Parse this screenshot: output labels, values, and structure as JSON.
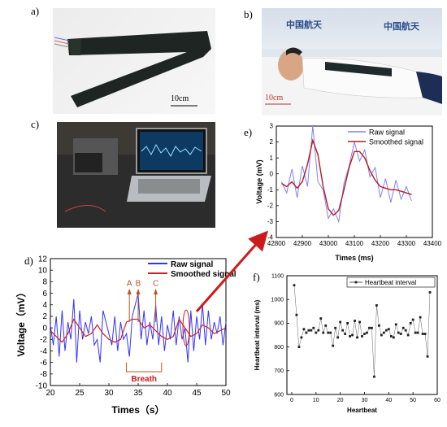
{
  "panels": {
    "a": {
      "label": "a)",
      "scale_text": "10cm"
    },
    "b": {
      "label": "b)",
      "scale_text": "10cm",
      "banner_text": "中国航天"
    },
    "c": {
      "label": "c)"
    },
    "d": {
      "label": "d)"
    },
    "e": {
      "label": "e)"
    },
    "f": {
      "label": "f)"
    }
  },
  "colors": {
    "raw": "#3333ff",
    "smoothed": "#cc2222",
    "annotation": "#b8541e",
    "arrow": "#cc1b1b"
  },
  "chart_data": [
    {
      "id": "d",
      "type": "line",
      "xlabel": "Times（s）",
      "ylabel": "Voltage（mV）",
      "xlim": [
        20,
        50
      ],
      "ylim": [
        -10,
        12
      ],
      "xticks": [
        20,
        25,
        30,
        35,
        40,
        45,
        50
      ],
      "yticks": [
        -10,
        -8,
        -6,
        -4,
        -2,
        0,
        2,
        4,
        6,
        8,
        10,
        12
      ],
      "legend": {
        "placement": "top-right",
        "entries": [
          "Raw signal",
          "Smoothed signal"
        ]
      },
      "series": [
        {
          "name": "Raw signal",
          "color": "#3333ff",
          "x": [
            20,
            20.5,
            21,
            21.5,
            22,
            22.5,
            23,
            23.5,
            24,
            24.5,
            25,
            25.5,
            26,
            26.5,
            27,
            27.5,
            28,
            28.5,
            29,
            29.5,
            30,
            30.5,
            31,
            31.5,
            32,
            32.5,
            33,
            33.5,
            34,
            34.5,
            35,
            35.5,
            36,
            36.5,
            37,
            37.5,
            38,
            38.5,
            39,
            39.5,
            40,
            40.5,
            41,
            41.5,
            42,
            42.5,
            43,
            43.5,
            44,
            44.5,
            45,
            45.5,
            46,
            46.5,
            47,
            47.5,
            48,
            48.5,
            49,
            49.5,
            50
          ],
          "values": [
            0.5,
            -3,
            2,
            -5,
            3,
            -4,
            1,
            -2,
            5,
            -6,
            3,
            -2,
            1,
            -1,
            2,
            -3,
            -2,
            -6,
            3,
            1,
            -1,
            -3,
            2,
            -4,
            1,
            -2,
            -1,
            -5,
            2,
            4,
            6,
            -2,
            3,
            -3,
            1,
            -2,
            4,
            -3,
            2,
            -4,
            0.5,
            -2,
            3,
            -3,
            2,
            -2,
            0,
            -6,
            3,
            -4,
            2,
            -2,
            4,
            -3,
            3,
            -2,
            1,
            -1,
            2,
            -3,
            1
          ]
        },
        {
          "name": "Smoothed signal",
          "color": "#cc2222",
          "x": [
            20,
            21,
            22,
            23,
            24,
            25,
            26,
            27,
            28,
            29,
            30,
            31,
            32,
            33,
            34,
            35,
            36,
            37,
            38,
            39,
            40,
            41,
            42,
            43,
            44,
            45,
            46,
            47,
            48,
            49,
            50
          ],
          "values": [
            -0.5,
            -1.5,
            -2.5,
            -1,
            1.5,
            0,
            -1.5,
            -1,
            0.5,
            -1,
            -2,
            -2.5,
            -2,
            1,
            1.5,
            1.5,
            0,
            0.5,
            -0.5,
            -1.5,
            -2,
            -1.5,
            1.5,
            0,
            -1.5,
            -1,
            0.5,
            0,
            -1,
            -0.5,
            0
          ]
        }
      ],
      "annotations": {
        "markers": [
          "A",
          "B",
          "C"
        ],
        "marker_x": [
          33.5,
          35,
          38
        ],
        "breath_label": "Breath",
        "breath_range": [
          33,
          39
        ]
      }
    },
    {
      "id": "e",
      "type": "line",
      "xlabel": "Times (ms)",
      "ylabel": "Voltage (mV)",
      "xlim": [
        42800,
        43400
      ],
      "ylim": [
        -4,
        3
      ],
      "xticks": [
        42800,
        42900,
        43000,
        43100,
        43200,
        43300,
        43400
      ],
      "yticks": [
        -4,
        -3,
        -2,
        -1,
        0,
        1,
        2,
        3
      ],
      "legend": {
        "placement": "top-right",
        "entries": [
          "Raw signal",
          "Smoothed signal"
        ]
      },
      "series": [
        {
          "name": "Raw signal",
          "color": "#8080ff",
          "x": [
            42820,
            42840,
            42860,
            42880,
            42900,
            42920,
            42940,
            42960,
            42980,
            43000,
            43020,
            43040,
            43060,
            43080,
            43100,
            43120,
            43140,
            43160,
            43180,
            43200,
            43220,
            43240,
            43260,
            43280,
            43300,
            43320
          ],
          "values": [
            -0.5,
            -1.2,
            0.3,
            -1.5,
            0.5,
            -0.8,
            3.0,
            -0.5,
            -1.0,
            -2.8,
            -2.2,
            -3.0,
            -0.6,
            0.5,
            2.0,
            0.8,
            1.5,
            -0.2,
            0.4,
            -1.5,
            -0.3,
            -1.8,
            -0.4,
            -1.6,
            -0.8,
            -1.7
          ]
        },
        {
          "name": "Smoothed signal",
          "color": "#b71c1c",
          "x": [
            42820,
            42840,
            42860,
            42880,
            42900,
            42920,
            42940,
            42960,
            42980,
            43000,
            43020,
            43040,
            43060,
            43080,
            43100,
            43120,
            43140,
            43160,
            43180,
            43200,
            43220,
            43240,
            43260,
            43280,
            43300,
            43320
          ],
          "values": [
            -0.6,
            -0.8,
            -0.5,
            -0.9,
            -0.5,
            0.6,
            2.1,
            1.2,
            -0.8,
            -2.2,
            -2.6,
            -2.3,
            -1.0,
            0.4,
            1.4,
            1.4,
            1.0,
            0.2,
            -0.4,
            -0.8,
            -0.9,
            -1.0,
            -1.0,
            -1.1,
            -1.2,
            -1.3
          ]
        }
      ]
    },
    {
      "id": "f",
      "type": "scatter",
      "xlabel": "Heartbeat",
      "ylabel": "Heartbeat interval (ms)",
      "xlim": [
        -2,
        60
      ],
      "ylim": [
        600,
        1100
      ],
      "xticks": [
        0,
        10,
        20,
        30,
        40,
        50,
        60
      ],
      "yticks": [
        600,
        700,
        800,
        900,
        1000,
        1100
      ],
      "legend": {
        "placement": "top-right",
        "entries": [
          "Heartbeat interval"
        ]
      },
      "series": [
        {
          "name": "Heartbeat interval",
          "color": "#222222",
          "x": [
            1,
            2,
            3,
            4,
            5,
            6,
            7,
            8,
            9,
            10,
            11,
            12,
            13,
            14,
            15,
            16,
            17,
            18,
            19,
            20,
            21,
            22,
            23,
            24,
            25,
            26,
            27,
            28,
            29,
            30,
            31,
            32,
            33,
            34,
            35,
            36,
            37,
            38,
            39,
            40,
            41,
            42,
            43,
            44,
            45,
            46,
            47,
            48,
            49,
            50,
            51,
            52,
            53,
            54,
            55,
            56,
            57
          ],
          "values": [
            1060,
            935,
            800,
            840,
            875,
            860,
            870,
            870,
            880,
            860,
            870,
            920,
            860,
            890,
            860,
            860,
            805,
            880,
            840,
            905,
            870,
            855,
            900,
            845,
            850,
            910,
            840,
            905,
            845,
            855,
            860,
            880,
            880,
            675,
            975,
            890,
            850,
            860,
            870,
            875,
            845,
            840,
            895,
            860,
            855,
            880,
            870,
            850,
            900,
            915,
            860,
            860,
            925,
            855,
            855,
            760,
            1030
          ]
        }
      ]
    }
  ]
}
